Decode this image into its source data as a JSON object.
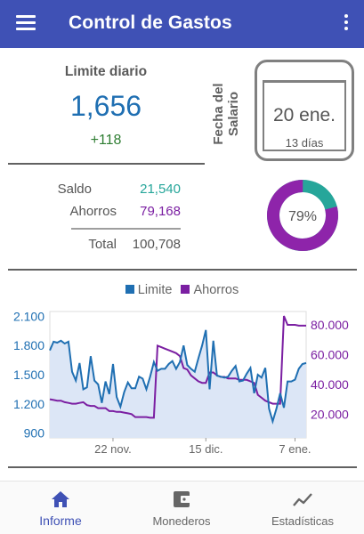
{
  "app": {
    "title": "Control de Gastos",
    "accent": "#3f51b5"
  },
  "daily_limit": {
    "label": "Limite diario",
    "value": "1,656",
    "delta": "+118"
  },
  "salary": {
    "label": "Fecha del Salario",
    "date": "20 ene.",
    "days_left": "13 días"
  },
  "summary": {
    "saldo_label": "Saldo",
    "saldo_value": "21,540",
    "ahorros_label": "Ahorros",
    "ahorros_value": "79,168",
    "total_label": "Total",
    "total_value": "100,708"
  },
  "donut": {
    "percent_label": "79%",
    "savings_fraction": 0.79,
    "colors": {
      "savings": "#8e24aa",
      "balance": "#26a69a",
      "bg": "#eeeeee"
    }
  },
  "legend": {
    "limite": "Limite",
    "ahorros": "Ahorros"
  },
  "colors": {
    "limite": "#1f6fb2",
    "ahorros": "#7b1fa2",
    "saldo": "#26a69a",
    "delta": "#2e7d32"
  },
  "chart_data": {
    "type": "line",
    "x_tick_labels": [
      "22 nov.",
      "15 dic.",
      "7 ene."
    ],
    "y_left": {
      "ticks": [
        900,
        1200,
        1500,
        1800,
        2100
      ],
      "tick_labels": [
        "900",
        "1.200",
        "1.500",
        "1.800",
        "2.100"
      ],
      "ylim": [
        850,
        2150
      ]
    },
    "y_right": {
      "ticks": [
        20000,
        40000,
        60000,
        80000
      ],
      "tick_labels": [
        "20.000",
        "40.000",
        "60.000",
        "80.000"
      ],
      "ylim": [
        4000,
        89000
      ]
    },
    "series": [
      {
        "name": "Limite",
        "axis": "left",
        "fill": true,
        "values": [
          1750,
          1840,
          1830,
          1850,
          1820,
          1840,
          1530,
          1440,
          1620,
          1350,
          1370,
          1690,
          1440,
          1400,
          1210,
          1430,
          1300,
          1610,
          1270,
          1170,
          1320,
          1420,
          1360,
          1360,
          1480,
          1460,
          1350,
          1480,
          1630,
          1540,
          1560,
          1560,
          1610,
          1640,
          1560,
          1630,
          1800,
          1600,
          1560,
          1530,
          1670,
          1800,
          1960,
          1350,
          1850,
          1490,
          1480,
          1470,
          1480,
          1540,
          1590,
          1430,
          1440,
          1510,
          1570,
          1310,
          1500,
          1470,
          1570,
          1150,
          1020,
          1150,
          1310,
          1160,
          1430,
          1430,
          1450,
          1560,
          1610,
          1620
        ]
      },
      {
        "name": "Ahorros",
        "axis": "right",
        "fill": false,
        "values": [
          30000,
          29500,
          29000,
          29000,
          28000,
          27500,
          27000,
          27000,
          27500,
          28000,
          26000,
          25500,
          25500,
          24000,
          24000,
          24000,
          22000,
          22000,
          21500,
          21500,
          21000,
          20500,
          20000,
          18000,
          18000,
          18000,
          18000,
          17500,
          17500,
          66000,
          65000,
          64000,
          63000,
          62000,
          61000,
          59000,
          51000,
          50000,
          46000,
          44000,
          42000,
          41000,
          41000,
          48000,
          48000,
          46000,
          45000,
          45000,
          44000,
          44000,
          44000,
          43000,
          43000,
          43000,
          42000,
          41000,
          33000,
          31000,
          29000,
          28000,
          27000,
          27000,
          27000,
          86000,
          80000,
          80000,
          80000,
          79500,
          79500,
          79500
        ]
      }
    ]
  },
  "nav": {
    "informe": "Informe",
    "monederos": "Monederos",
    "estadisticas": "Estadísticas"
  }
}
